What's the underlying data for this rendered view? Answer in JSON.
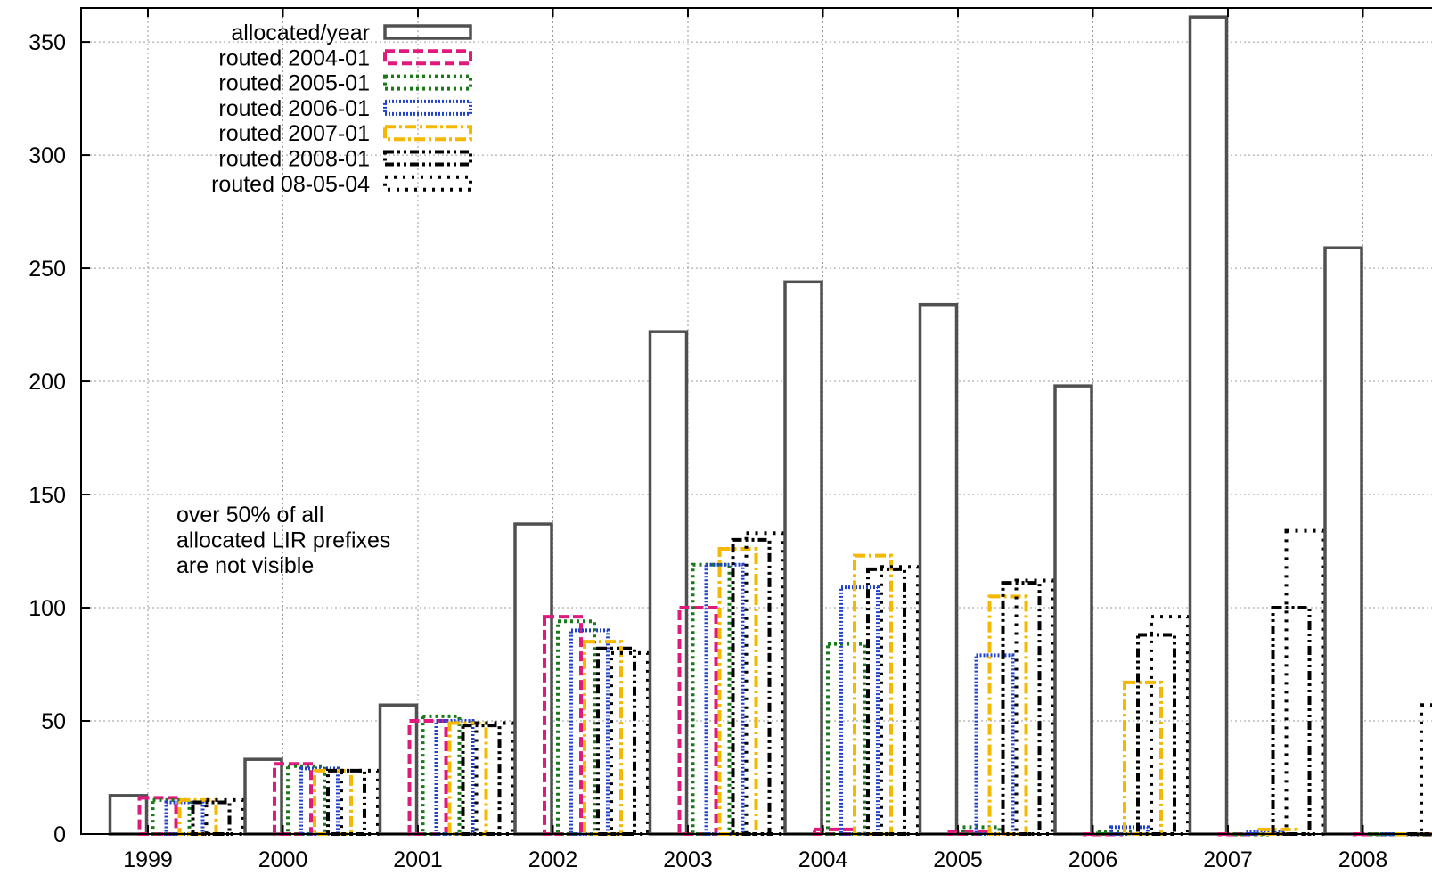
{
  "chart_data": {
    "type": "bar",
    "title": "",
    "xlabel": "",
    "ylabel": "",
    "ylim": [
      0,
      365
    ],
    "yticks": [
      0,
      50,
      100,
      150,
      200,
      250,
      300,
      350
    ],
    "categories": [
      "1999",
      "2000",
      "2001",
      "2002",
      "2003",
      "2004",
      "2005",
      "2006",
      "2007",
      "2008"
    ],
    "grid": true,
    "legend_position": "top-left",
    "series": [
      {
        "name": "allocated/year",
        "color": "#505050",
        "dash": "solid",
        "values": [
          17,
          33,
          57,
          137,
          222,
          244,
          234,
          198,
          361,
          259
        ]
      },
      {
        "name": "routed 2004-01",
        "color": "#e0197d",
        "dash": "dashed",
        "values": [
          16,
          31,
          50,
          96,
          100,
          2,
          1,
          0,
          0,
          0
        ]
      },
      {
        "name": "routed 2005-01",
        "color": "#1a7a1a",
        "dash": "dotted",
        "values": [
          15,
          30,
          52,
          94,
          119,
          84,
          3,
          1,
          0,
          0
        ]
      },
      {
        "name": "routed 2006-01",
        "color": "#2040d0",
        "dash": "fine-dotted",
        "values": [
          14,
          29,
          50,
          90,
          119,
          109,
          79,
          3,
          1,
          0
        ]
      },
      {
        "name": "routed 2007-01",
        "color": "#f5b800",
        "dash": "dash-dot",
        "values": [
          15,
          28,
          49,
          85,
          126,
          123,
          105,
          67,
          2,
          0
        ]
      },
      {
        "name": "routed 2008-01",
        "color": "#000000",
        "dash": "dash-dot-dot",
        "values": [
          14,
          28,
          48,
          82,
          130,
          117,
          111,
          88,
          100,
          0
        ]
      },
      {
        "name": "routed 08-05-04",
        "color": "#000000",
        "dash": "sparse-dotted",
        "values": [
          15,
          28,
          49,
          80,
          133,
          118,
          112,
          96,
          134,
          57
        ]
      }
    ],
    "annotations": [
      {
        "lines": [
          "over 50% of all",
          "allocated LIR prefixes",
          "are not visible"
        ]
      }
    ]
  }
}
